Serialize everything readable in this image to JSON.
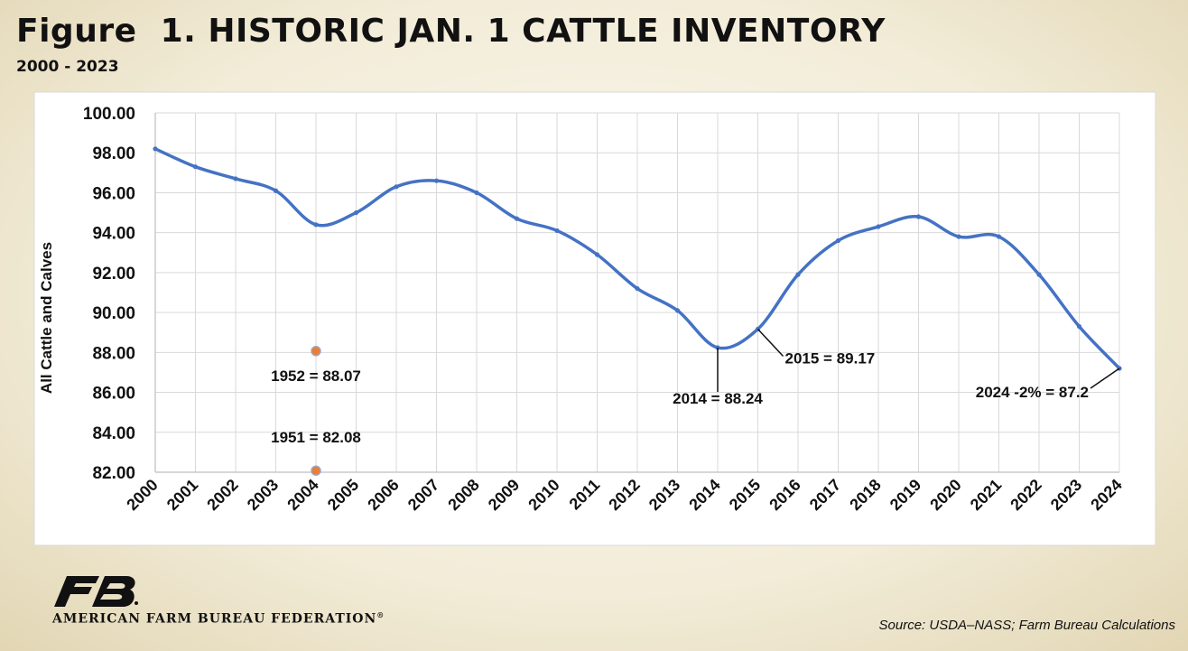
{
  "chart_data": {
    "type": "line",
    "title": "Figure  1. HISTORIC JAN. 1 CATTLE INVENTORY",
    "subtitle": "2000 - 2023",
    "xlabel": "",
    "ylabel": "All Cattle and Calves",
    "ylim": [
      82,
      100
    ],
    "yticks": [
      "100.00",
      "98.00",
      "96.00",
      "94.00",
      "92.00",
      "90.00",
      "88.00",
      "86.00",
      "84.00",
      "82.00"
    ],
    "x": [
      "2000",
      "2001",
      "2002",
      "2003",
      "2004",
      "2005",
      "2006",
      "2007",
      "2008",
      "2009",
      "2010",
      "2011",
      "2012",
      "2013",
      "2014",
      "2015",
      "2016",
      "2017",
      "2018",
      "2019",
      "2020",
      "2021",
      "2022",
      "2023",
      "2024"
    ],
    "series": [
      {
        "color": "#4472c4",
        "values": [
          98.2,
          97.3,
          96.7,
          96.1,
          94.4,
          95.0,
          96.3,
          96.6,
          96.0,
          94.7,
          94.1,
          92.9,
          91.2,
          90.1,
          88.24,
          89.17,
          91.9,
          93.6,
          94.3,
          94.8,
          93.8,
          93.8,
          91.9,
          89.3,
          87.2
        ]
      }
    ],
    "extra_points": [
      {
        "x": "2004",
        "y": 88.07,
        "label": "1952 = 88.07",
        "color": "#ed7d31"
      },
      {
        "x": "2004",
        "y": 82.08,
        "label": "1951 = 82.08",
        "color": "#ed7d31"
      }
    ],
    "annotations": [
      {
        "x": "2014",
        "y": 88.24,
        "label": "2014 = 88.24"
      },
      {
        "x": "2015",
        "y": 89.17,
        "label": "2015 = 89.17"
      },
      {
        "x": "2024",
        "y": 87.2,
        "label": "2024 -2% = 87.2"
      }
    ],
    "grid": true
  },
  "footer": {
    "logo_text": "FB",
    "organization": "AMERICAN FARM BUREAU FEDERATION",
    "trademark": "®",
    "source": "Source: USDA–NASS; Farm Bureau Calculations"
  }
}
